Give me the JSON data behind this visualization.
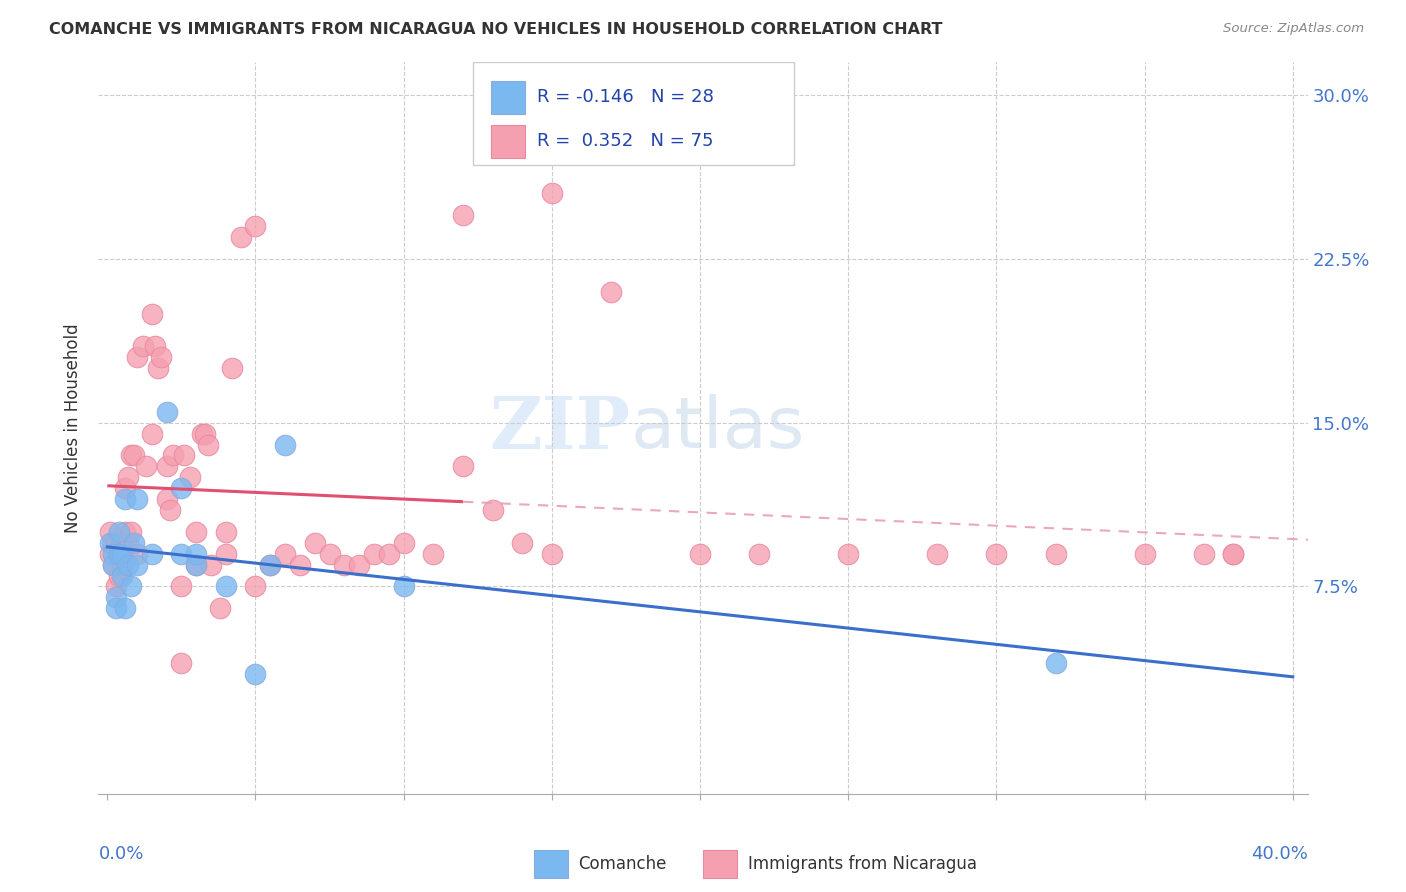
{
  "title": "COMANCHE VS IMMIGRANTS FROM NICARAGUA NO VEHICLES IN HOUSEHOLD CORRELATION CHART",
  "source": "Source: ZipAtlas.com",
  "ylabel": "No Vehicles in Household",
  "ytick_vals": [
    0.0,
    0.075,
    0.15,
    0.225,
    0.3
  ],
  "ytick_labels": [
    "",
    "7.5%",
    "15.0%",
    "22.5%",
    "30.0%"
  ],
  "xlim": [
    0.0,
    0.4
  ],
  "ylim": [
    -0.02,
    0.315
  ],
  "color_blue": "#7bb8f0",
  "color_blue_line": "#3b6fcc",
  "color_pink": "#f5a0b0",
  "color_pink_line": "#e05070",
  "color_pink_dashed": "#e8a0b0",
  "watermark_zip": "ZIP",
  "watermark_atlas": "atlas",
  "com_x": [
    0.001,
    0.002,
    0.002,
    0.003,
    0.003,
    0.004,
    0.004,
    0.005,
    0.005,
    0.006,
    0.006,
    0.007,
    0.008,
    0.009,
    0.01,
    0.01,
    0.015,
    0.02,
    0.025,
    0.025,
    0.03,
    0.03,
    0.04,
    0.05,
    0.055,
    0.06,
    0.1,
    0.32
  ],
  "com_y": [
    0.095,
    0.09,
    0.085,
    0.07,
    0.065,
    0.09,
    0.1,
    0.08,
    0.09,
    0.065,
    0.115,
    0.085,
    0.075,
    0.095,
    0.085,
    0.115,
    0.09,
    0.155,
    0.09,
    0.12,
    0.085,
    0.09,
    0.075,
    0.035,
    0.085,
    0.14,
    0.075,
    0.04
  ],
  "nic_x": [
    0.001,
    0.001,
    0.002,
    0.002,
    0.003,
    0.003,
    0.004,
    0.004,
    0.005,
    0.005,
    0.006,
    0.006,
    0.007,
    0.007,
    0.008,
    0.008,
    0.009,
    0.01,
    0.01,
    0.012,
    0.013,
    0.015,
    0.015,
    0.016,
    0.017,
    0.018,
    0.02,
    0.02,
    0.021,
    0.022,
    0.025,
    0.025,
    0.026,
    0.028,
    0.03,
    0.03,
    0.032,
    0.033,
    0.034,
    0.035,
    0.038,
    0.04,
    0.04,
    0.042,
    0.045,
    0.05,
    0.05,
    0.055,
    0.06,
    0.065,
    0.07,
    0.075,
    0.08,
    0.085,
    0.09,
    0.095,
    0.1,
    0.11,
    0.12,
    0.12,
    0.13,
    0.14,
    0.15,
    0.15,
    0.17,
    0.2,
    0.22,
    0.25,
    0.28,
    0.3,
    0.32,
    0.35,
    0.37,
    0.38,
    0.38
  ],
  "nic_y": [
    0.09,
    0.1,
    0.085,
    0.095,
    0.095,
    0.075,
    0.08,
    0.09,
    0.085,
    0.095,
    0.1,
    0.12,
    0.095,
    0.125,
    0.1,
    0.135,
    0.135,
    0.09,
    0.18,
    0.185,
    0.13,
    0.145,
    0.2,
    0.185,
    0.175,
    0.18,
    0.115,
    0.13,
    0.11,
    0.135,
    0.04,
    0.075,
    0.135,
    0.125,
    0.085,
    0.1,
    0.145,
    0.145,
    0.14,
    0.085,
    0.065,
    0.1,
    0.09,
    0.175,
    0.235,
    0.24,
    0.075,
    0.085,
    0.09,
    0.085,
    0.095,
    0.09,
    0.085,
    0.085,
    0.09,
    0.09,
    0.095,
    0.09,
    0.13,
    0.245,
    0.11,
    0.095,
    0.09,
    0.255,
    0.21,
    0.09,
    0.09,
    0.09,
    0.09,
    0.09,
    0.09,
    0.09,
    0.09,
    0.09,
    0.09
  ]
}
